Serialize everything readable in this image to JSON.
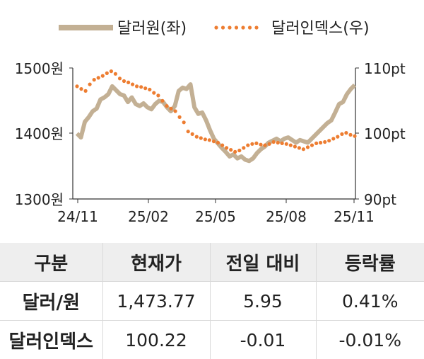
{
  "chart_data": {
    "type": "line",
    "legend_position": "top",
    "grid": false,
    "x_ticks": [
      "24/11",
      "25/02",
      "25/05",
      "25/08",
      "25/11"
    ],
    "y_left": {
      "ticks": [
        "1500원",
        "1400원",
        "1300원"
      ],
      "range": [
        1300,
        1500
      ]
    },
    "y_right": {
      "ticks": [
        "110pt",
        "100pt",
        "90pt"
      ],
      "range": [
        90,
        110
      ]
    },
    "series": [
      {
        "name": "달러원(좌)",
        "axis": "left",
        "style": "solid",
        "color": "#c3b094",
        "values": [
          1400,
          1394,
          1418,
          1425,
          1434,
          1438,
          1452,
          1455,
          1460,
          1472,
          1466,
          1460,
          1458,
          1448,
          1455,
          1445,
          1442,
          1446,
          1440,
          1437,
          1445,
          1450,
          1448,
          1440,
          1434,
          1442,
          1465,
          1470,
          1468,
          1475,
          1440,
          1430,
          1432,
          1420,
          1405,
          1392,
          1385,
          1378,
          1372,
          1365,
          1368,
          1362,
          1365,
          1360,
          1358,
          1362,
          1370,
          1376,
          1380,
          1386,
          1389,
          1392,
          1388,
          1392,
          1394,
          1390,
          1386,
          1390,
          1388,
          1386,
          1392,
          1398,
          1404,
          1410,
          1416,
          1420,
          1432,
          1445,
          1448,
          1460,
          1468,
          1474
        ]
      },
      {
        "name": "달러인덱스(우)",
        "axis": "right",
        "style": "dotted",
        "color": "#ed7d31",
        "values": [
          107.2,
          106.8,
          106.5,
          107.5,
          108.2,
          108.5,
          108.8,
          109.2,
          109.5,
          109.1,
          108.4,
          108.0,
          107.8,
          107.5,
          107.2,
          107.1,
          106.9,
          106.7,
          106.2,
          105.8,
          105.0,
          104.2,
          103.8,
          103.4,
          102.5,
          101.7,
          100.3,
          99.9,
          99.5,
          99.3,
          99.1,
          99.0,
          98.8,
          98.6,
          98.2,
          97.8,
          97.5,
          97.2,
          97.4,
          97.8,
          98.2,
          98.4,
          98.5,
          98.3,
          98.2,
          98.4,
          98.7,
          98.6,
          98.5,
          98.4,
          98.2,
          98.0,
          97.8,
          97.6,
          97.9,
          98.2,
          98.5,
          98.6,
          98.7,
          98.9,
          99.2,
          99.5,
          99.9,
          100.1,
          99.8,
          99.6
        ]
      }
    ]
  },
  "table": {
    "headers": [
      "구분",
      "현재가",
      "전일 대비",
      "등락률"
    ],
    "rows": [
      [
        "달러/원",
        "1,473.77",
        "5.95",
        "0.41%"
      ],
      [
        "달러인덱스",
        "100.22",
        "-0.01",
        "-0.01%"
      ]
    ]
  }
}
